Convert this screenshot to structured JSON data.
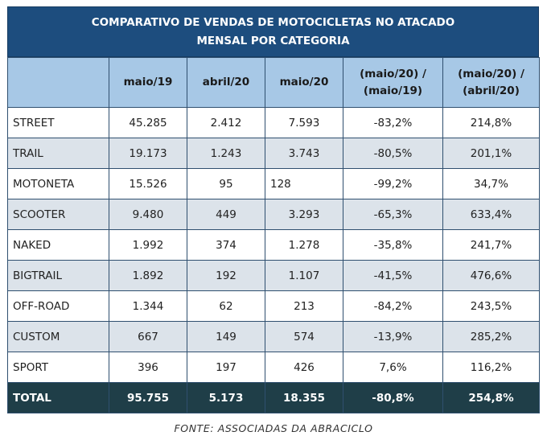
{
  "title": {
    "line1": "COMPARATIVO DE VENDAS DE MOTOCICLETAS NO ATACADO",
    "line2": "MENSAL POR CATEGORIA"
  },
  "headers": [
    "",
    "maio/19",
    "abril/20",
    "maio/20",
    "(maio/20) /",
    "(maio/19)",
    "(maio/20) /",
    "(abril/20)"
  ],
  "rows": [
    {
      "cat": "STREET",
      "maio19": "45.285",
      "abril20": "2.412",
      "maio20": "7.593",
      "vs_maio19": "-83,2%",
      "vs_abril20": "214,8%"
    },
    {
      "cat": "TRAIL",
      "maio19": "19.173",
      "abril20": "1.243",
      "maio20": "3.743",
      "vs_maio19": "-80,5%",
      "vs_abril20": "201,1%"
    },
    {
      "cat": "MOTONETA",
      "maio19": "15.526",
      "abril20": "95",
      "maio20": "128",
      "vs_maio19": "-99,2%",
      "vs_abril20": "34,7%"
    },
    {
      "cat": "SCOOTER",
      "maio19": "9.480",
      "abril20": "449",
      "maio20": "3.293",
      "vs_maio19": "-65,3%",
      "vs_abril20": "633,4%"
    },
    {
      "cat": "NAKED",
      "maio19": "1.992",
      "abril20": "374",
      "maio20": "1.278",
      "vs_maio19": "-35,8%",
      "vs_abril20": "241,7%"
    },
    {
      "cat": "BIGTRAIL",
      "maio19": "1.892",
      "abril20": "192",
      "maio20": "1.107",
      "vs_maio19": "-41,5%",
      "vs_abril20": "476,6%"
    },
    {
      "cat": "OFF-ROAD",
      "maio19": "1.344",
      "abril20": "62",
      "maio20": "213",
      "vs_maio19": "-84,2%",
      "vs_abril20": "243,5%"
    },
    {
      "cat": "CUSTOM",
      "maio19": "667",
      "abril20": "149",
      "maio20": "574",
      "vs_maio19": "-13,9%",
      "vs_abril20": "285,2%"
    },
    {
      "cat": "SPORT",
      "maio19": "396",
      "abril20": "197",
      "maio20": "426",
      "vs_maio19": "7,6%",
      "vs_abril20": "116,2%"
    }
  ],
  "total": {
    "cat": "TOTAL",
    "maio19": "95.755",
    "abril20": "5.173",
    "maio20": "18.355",
    "vs_maio19": "-80,8%",
    "vs_abril20": "254,8%"
  },
  "source": "FONTE: ASSOCIADAS DA ABRACICLO"
}
